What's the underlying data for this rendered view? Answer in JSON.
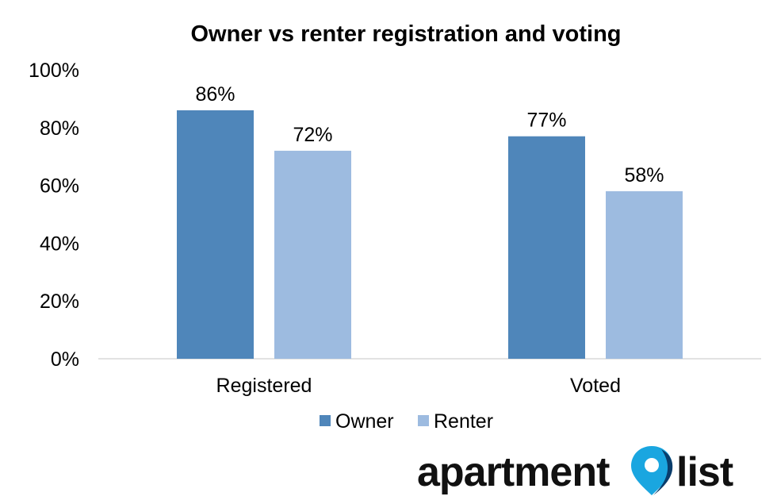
{
  "chart_data": {
    "type": "bar",
    "title": "Owner vs renter registration and voting",
    "categories": [
      "Registered",
      "Voted"
    ],
    "series": [
      {
        "name": "Owner",
        "values": [
          86,
          77
        ],
        "color": "#4f86ba"
      },
      {
        "name": "Renter",
        "values": [
          72,
          58
        ],
        "color": "#9dbbe0"
      }
    ],
    "data_labels": [
      [
        "86%",
        "77%"
      ],
      [
        "72%",
        "58%"
      ]
    ],
    "ylim": [
      0,
      100
    ],
    "yticks": [
      "0%",
      "20%",
      "40%",
      "60%",
      "80%",
      "100%"
    ],
    "ytick_values": [
      0,
      20,
      40,
      60,
      80,
      100
    ],
    "grid": false,
    "legend_position": "bottom"
  },
  "branding": {
    "logo_word1": "apartment",
    "logo_word2": "list",
    "logo_colors": {
      "text": "#111111",
      "pin": "#1aa6e0",
      "pin_dark": "#0a3d6b"
    },
    "logo_icon": "map-pin-icon"
  }
}
